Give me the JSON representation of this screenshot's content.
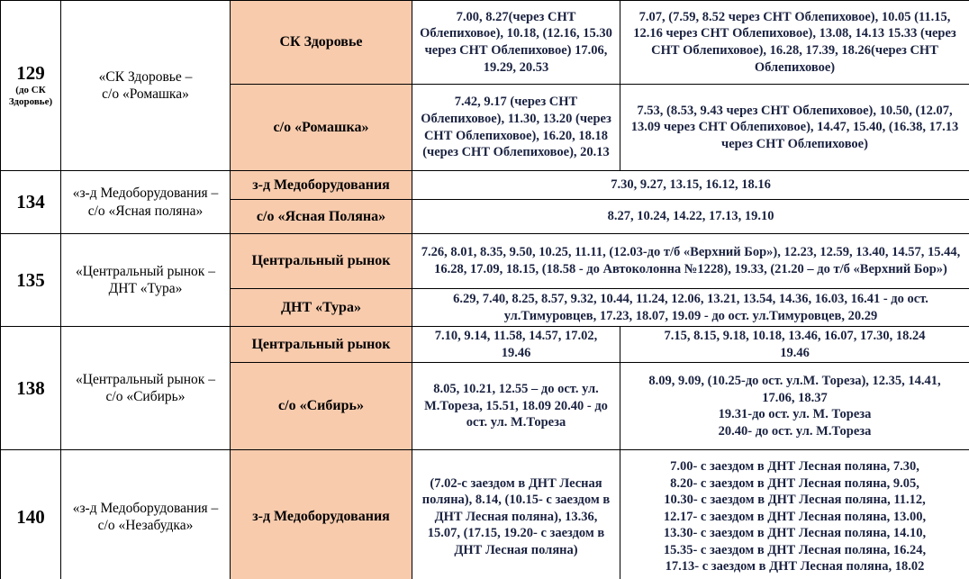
{
  "table": {
    "colors": {
      "stop_cell_background": "#F8CBAD",
      "times_text": "#1a2240",
      "border": "#000000",
      "page_background": "#ffffff"
    },
    "rows": [
      {
        "number": "129",
        "number_note": "(до СК Здоровье)",
        "route": "«СК Здоровье –\nс/о «Ромашка»",
        "subrows": [
          {
            "stop": "СК Здоровье",
            "times": [
              "7.00, 8.27(через СНТ Облепиховое), 10.18, (12.16, 15.30 через СНТ Облепиховое) 17.06, 19.29, 20.53",
              "7.07, (7.59, 8.52 через СНТ Облепиховое), 10.05 (11.15, 12.16 через СНТ Облепиховое), 13.08, 14.13 15.33 (через СНТ Облепиховое), 16.28, 17.39, 18.26(через СНТ Облепиховое)"
            ]
          },
          {
            "stop": "с/о «Ромашка»",
            "times": [
              "7.42, 9.17 (через СНТ Облепиховое), 11.30, 13.20 (через СНТ Облепиховое), 16.20, 18.18 (через СНТ Облепиховое), 20.13",
              "7.53, (8.53, 9.43 через СНТ Облепиховое), 10.50, (12.07, 13.09 через СНТ Облепиховое), 14.47, 15.40, (16.38, 17.13 через СНТ Облепиховое)"
            ]
          }
        ]
      },
      {
        "number": "134",
        "route": "«з-д Медоборудования –\nс/о «Ясная поляна»",
        "subrows": [
          {
            "stop": "з-д Медоборудования",
            "times": [
              "7.30, 9.27, 13.15, 16.12, 18.16"
            ]
          },
          {
            "stop": "с/о «Ясная Поляна»",
            "times": [
              "8.27, 10.24, 14.22, 17.13, 19.10"
            ]
          }
        ]
      },
      {
        "number": "135",
        "route": "«Центральный рынок –\nДНТ «Тура»",
        "subrows": [
          {
            "stop": "Центральный рынок",
            "times": [
              "7.26, 8.01, 8.35, 9.50, 10.25, 11.11,  (12.03-до т/б «Верхний Бор»), 12.23, 12.59, 13.40, 14.57, 15.44, 16.28, 17.09, 18.15, (18.58 - до Автоколонна №1228), 19.33, (21.20 – до т/б «Верхний Бор»)"
            ]
          },
          {
            "stop": "ДНТ «Тура»",
            "times": [
              "6.29, 7.40, 8.25, 8.57, 9.32, 10.44, 11.24, 12.06, 13.21, 13.54, 14.36, 16.03,  16.41 - до ост. ул.Тимуровцев, 17.23, 18.07, 19.09 - до ост. ул.Тимуровцев, 20.29"
            ]
          }
        ]
      },
      {
        "number": "138",
        "route": "«Центральный рынок –\nс/о «Сибирь»",
        "subrows": [
          {
            "stop": "Центральный рынок",
            "times": [
              "7.10, 9.14, 11.58, 14.57, 17.02,\n19.46",
              "7.15, 8.15, 9.18, 10.18, 13.46, 16.07, 17.30, 18.24\n19.46"
            ]
          },
          {
            "stop": "с/о «Сибирь»",
            "times": [
              "8.05, 10.21, 12.55 – до ост. ул. М.Тореза, 15.51, 18.09  20.40 - до ост. ул. М.Тореза",
              "8.09, 9.09, (10.25-до ост. ул.М. Тореза), 12.35, 14.41,\n17.06, 18.37\n19.31-до ост. ул. М. Тореза\n20.40- до ост. ул. М.Тореза"
            ]
          }
        ]
      },
      {
        "number": "140",
        "route": "«з-д Медоборудования –\nс/о «Незабудка»",
        "subrows": [
          {
            "stop": "з-д Медоборудования",
            "times": [
              "(7.02-с заездом в ДНТ Лесная поляна), 8.14, (10.15- с заездом в ДНТ Лесная поляна), 13.36, 15.07, (17.15, 19.20- с заездом в ДНТ Лесная поляна)",
              "7.00- с заездом в ДНТ Лесная поляна, 7.30,\n8.20- с заездом в ДНТ Лесная поляна, 9.05,\n10.30- с заездом в ДНТ Лесная поляна, 11.12,\n12.17- с заездом в ДНТ Лесная поляна, 13.00,\n13.30- с заездом в ДНТ Лесная поляна, 14.10,\n15.35- с заездом в ДНТ Лесная поляна, 16.24,\n17.13- с заездом в ДНТ Лесная поляна, 18.02"
            ]
          }
        ]
      }
    ]
  }
}
